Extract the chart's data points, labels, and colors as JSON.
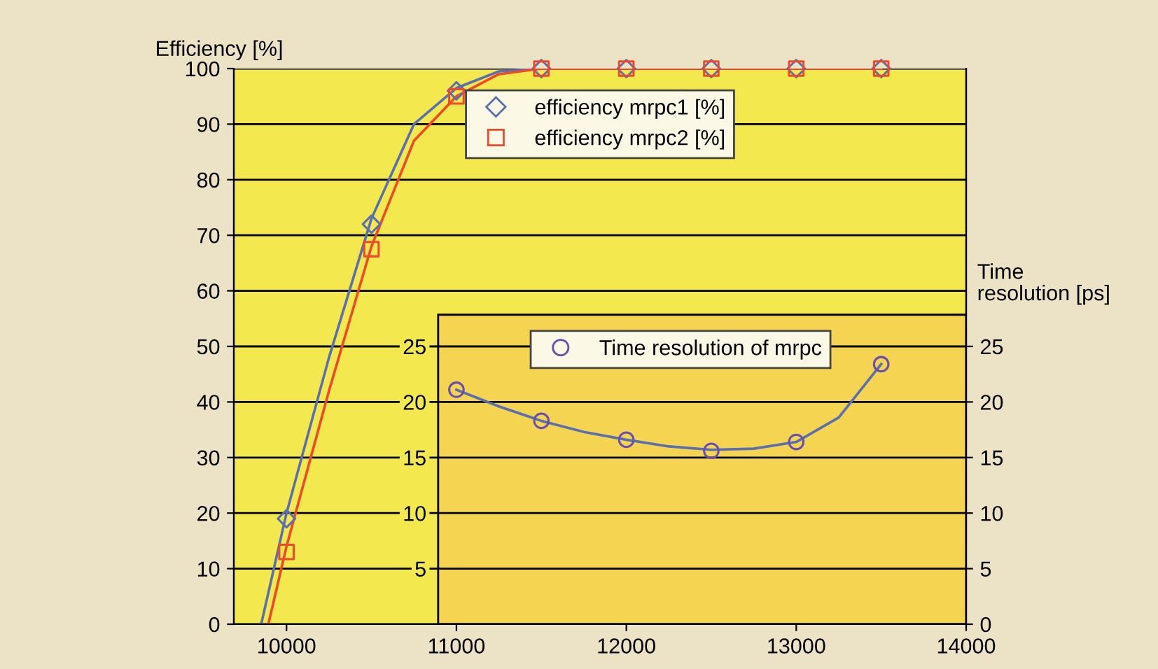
{
  "chart_data": {
    "type": "scatter",
    "ylabel": "Efficiency [%]",
    "y2label": "Time\nresolution [ps]",
    "xlim": [
      9690,
      14000
    ],
    "ylim": [
      0,
      100
    ],
    "xticks": [
      10000,
      11000,
      12000,
      13000,
      14000
    ],
    "yticks": [
      0,
      10,
      20,
      30,
      40,
      50,
      60,
      70,
      80,
      90,
      100
    ],
    "y2lim": [
      0,
      50
    ],
    "y2ticks": [
      0,
      5,
      10,
      15,
      20,
      25
    ],
    "y3lim": [
      0,
      50
    ],
    "y3ticks": [
      5,
      10,
      15,
      20,
      25
    ],
    "grid": "y",
    "legend": "top",
    "series": [
      {
        "type": "line",
        "color": "#5a6fb0",
        "marker": "none",
        "x": [
          9851,
          10000,
          10250,
          10500,
          10750,
          11000,
          11250,
          11500,
          13500
        ],
        "values": [
          0,
          20,
          48,
          73,
          90,
          96.5,
          99.5,
          100,
          100
        ]
      },
      {
        "type": "line",
        "color": "#ee4a2a",
        "marker": "none",
        "x": [
          9893,
          10000,
          10250,
          10500,
          10750,
          11000,
          11250,
          11500,
          13500
        ],
        "values": [
          0,
          14,
          42,
          68,
          87,
          95,
          99,
          100,
          100
        ]
      },
      {
        "name": "efficiency mrpc1 [%]",
        "color": "#5a6fb0",
        "marker": "diamond",
        "x": [
          10000,
          10500,
          11000,
          11500,
          12000,
          12500,
          13000,
          13500
        ],
        "values": [
          19,
          72,
          96,
          100,
          100,
          100,
          100,
          100
        ]
      },
      {
        "name": "efficiency mrpc2 [%]",
        "color": "#ee4a2a",
        "marker": "square",
        "x": [
          10000,
          10500,
          11000,
          11500,
          12000,
          12500,
          13000,
          13500
        ],
        "values": [
          13,
          67.5,
          95,
          100,
          100,
          100,
          100,
          100
        ]
      },
      {
        "type": "line",
        "axis": "y2",
        "color": "#5a6fb0",
        "marker": "none",
        "x": [
          11000,
          11250,
          11500,
          11750,
          12000,
          12250,
          12500,
          12750,
          13000,
          13250,
          13500
        ],
        "values": [
          21.1,
          19.6,
          18.3,
          17.3,
          16.6,
          16.0,
          15.7,
          15.8,
          16.4,
          18.6,
          23.4
        ]
      },
      {
        "name": "Time resolution of mrpc",
        "axis": "y2",
        "color": "#6a4fb0",
        "marker": "circle",
        "x": [
          11000,
          11500,
          12000,
          12500,
          13000,
          13500
        ],
        "values": [
          21.1,
          18.3,
          16.6,
          15.6,
          16.4,
          23.4
        ]
      }
    ]
  }
}
